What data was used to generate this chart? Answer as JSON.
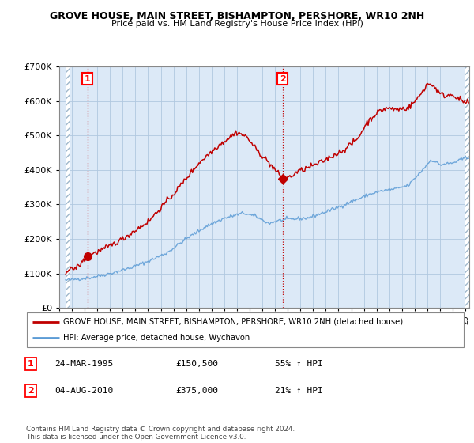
{
  "title": "GROVE HOUSE, MAIN STREET, BISHAMPTON, PERSHORE, WR10 2NH",
  "subtitle": "Price paid vs. HM Land Registry's House Price Index (HPI)",
  "legend_line1": "GROVE HOUSE, MAIN STREET, BISHAMPTON, PERSHORE, WR10 2NH (detached house)",
  "legend_line2": "HPI: Average price, detached house, Wychavon",
  "purchase1_label": "1",
  "purchase1_date": "24-MAR-1995",
  "purchase1_price": "£150,500",
  "purchase1_hpi": "55% ↑ HPI",
  "purchase2_label": "2",
  "purchase2_date": "04-AUG-2010",
  "purchase2_price": "£375,000",
  "purchase2_hpi": "21% ↑ HPI",
  "footer": "Contains HM Land Registry data © Crown copyright and database right 2024.\nThis data is licensed under the Open Government Licence v3.0.",
  "ylim": [
    0,
    700000
  ],
  "yticks": [
    0,
    100000,
    200000,
    300000,
    400000,
    500000,
    600000,
    700000
  ],
  "ytick_labels": [
    "£0",
    "£100K",
    "£200K",
    "£300K",
    "£400K",
    "£500K",
    "£600K",
    "£700K"
  ],
  "hpi_color": "#5b9bd5",
  "price_color": "#c00000",
  "bg_color": "#dce9f7",
  "hatch_color": "#c8d8ea",
  "grid_color": "#b0c8e0",
  "purchase1_x": 1995.23,
  "purchase1_y": 150500,
  "purchase2_x": 2010.59,
  "purchase2_y": 375000,
  "xlim_start": 1993.5,
  "xlim_end": 2025.3
}
